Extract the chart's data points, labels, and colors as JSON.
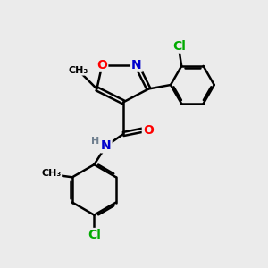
{
  "background_color": "#ebebeb",
  "bond_color": "#000000",
  "bond_width": 1.8,
  "atom_colors": {
    "O": "#ff0000",
    "N": "#0000cc",
    "Cl": "#00aa00",
    "C": "#000000",
    "H": "#708090"
  },
  "font_size": 9
}
